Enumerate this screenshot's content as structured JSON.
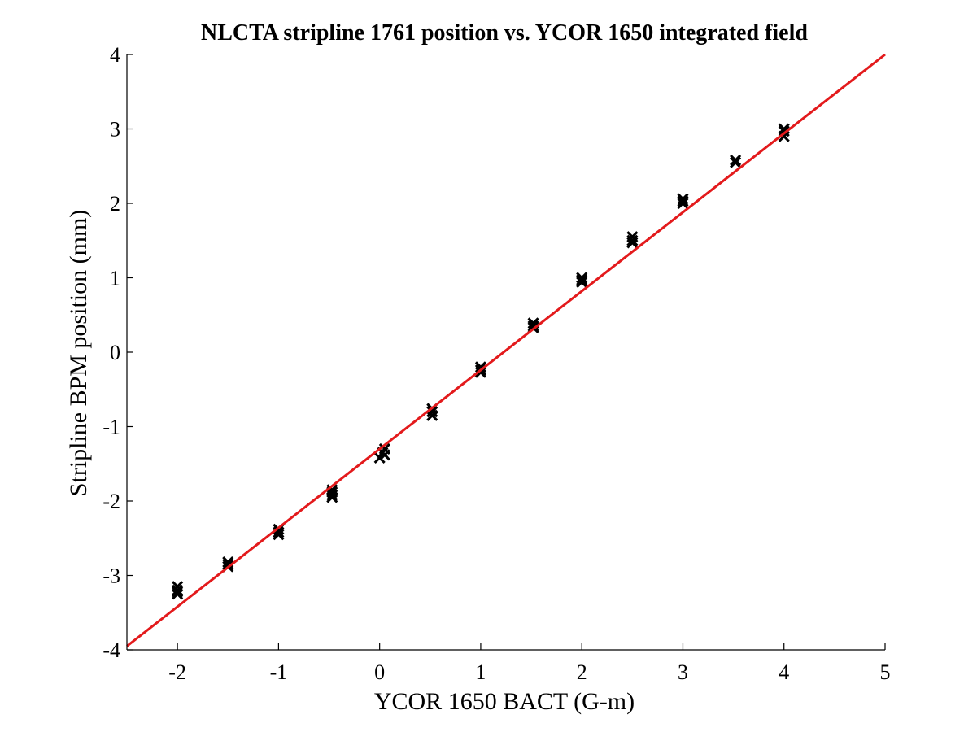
{
  "chart_data": {
    "type": "scatter",
    "title": "NLCTA stripline 1761 position vs. YCOR 1650 integrated field",
    "xlabel": "YCOR 1650 BACT (G-m)",
    "ylabel": "Stripline BPM position (mm)",
    "xlim": [
      -2.5,
      5
    ],
    "ylim": [
      -4,
      4
    ],
    "xticks": [
      -2,
      -1,
      0,
      1,
      2,
      3,
      4,
      5
    ],
    "yticks": [
      -4,
      -3,
      -2,
      -1,
      0,
      1,
      2,
      3,
      4
    ],
    "xtick_labels": [
      "-2",
      "-1",
      "0",
      "1",
      "2",
      "3",
      "4",
      "5"
    ],
    "ytick_labels": [
      "-4",
      "-3",
      "-2",
      "-1",
      "0",
      "1",
      "2",
      "3",
      "4"
    ],
    "grid": false,
    "marker_color": "#000000",
    "fit_color": "#e31a1c",
    "series": [
      {
        "marker": "x",
        "x": [
          -2.0,
          -2.0,
          -2.0,
          -2.0,
          -1.5,
          -1.5,
          -1.5,
          -1.0,
          -1.0,
          -1.0,
          -0.47,
          -0.47,
          -0.47,
          -0.47,
          0.0,
          0.03,
          0.05,
          0.05,
          0.52,
          0.52,
          0.52,
          1.0,
          1.0,
          1.0,
          1.52,
          1.52,
          1.52,
          2.0,
          2.0,
          2.0,
          2.5,
          2.5,
          2.5,
          3.0,
          3.0,
          3.0,
          3.52,
          3.52,
          4.0,
          4.0,
          4.0
        ],
        "y": [
          -3.15,
          -3.2,
          -3.25,
          -3.22,
          -2.82,
          -2.85,
          -2.88,
          -2.38,
          -2.42,
          -2.45,
          -1.85,
          -1.88,
          -1.92,
          -1.95,
          -1.42,
          -1.35,
          -1.3,
          -1.38,
          -0.76,
          -0.8,
          -0.85,
          -0.2,
          -0.24,
          -0.27,
          0.35,
          0.39,
          0.33,
          0.97,
          1.0,
          0.94,
          1.5,
          1.55,
          1.47,
          2.03,
          2.06,
          2.0,
          2.55,
          2.58,
          2.97,
          3.0,
          2.9
        ]
      },
      {
        "type": "line",
        "x": [
          -2.5,
          5.0
        ],
        "y": [
          -3.95,
          4.0
        ]
      }
    ]
  }
}
